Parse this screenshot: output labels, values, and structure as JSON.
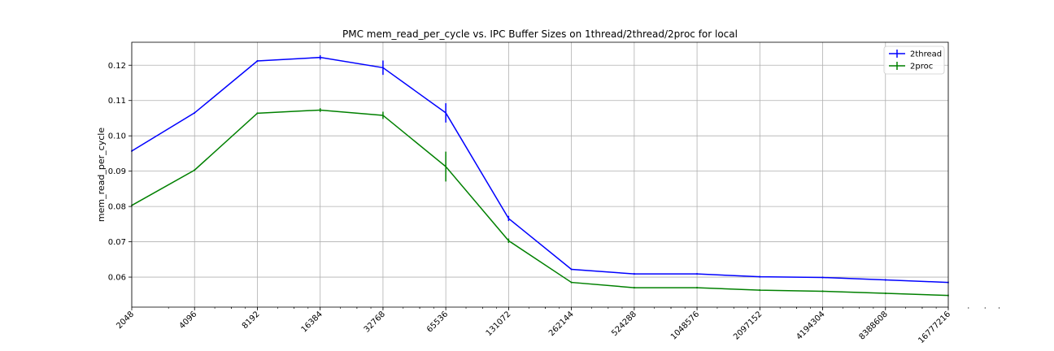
{
  "chart_data": {
    "type": "line",
    "title": "PMC mem_read_per_cycle vs. IPC Buffer Sizes on 1thread/2thread/2proc for local",
    "xlabel": "",
    "ylabel": "mem_read_per_cycle",
    "xscale": "log2",
    "grid": true,
    "legend_position": "top-right",
    "categories": [
      "2048",
      "4096",
      "8192",
      "16384",
      "32768",
      "65536",
      "131072",
      "262144",
      "524288",
      "1048576",
      "2097152",
      "4194304",
      "8388608",
      "16777216"
    ],
    "x": [
      2048,
      4096,
      8192,
      16384,
      32768,
      65536,
      131072,
      262144,
      524288,
      1048576,
      2097152,
      4194304,
      8388608,
      16777216
    ],
    "ylim": [
      0.0515,
      0.1265
    ],
    "yticks": [
      "0.06",
      "0.07",
      "0.08",
      "0.09",
      "0.10",
      "0.11",
      "0.12"
    ],
    "series": [
      {
        "name": "2thread",
        "color": "#0000ff",
        "values": [
          0.0957,
          0.1065,
          0.1212,
          0.1222,
          0.1193,
          0.1065,
          0.0766,
          0.0622,
          0.0609,
          0.0609,
          0.0601,
          0.0599,
          0.0592,
          0.0585
        ],
        "errors": [
          0,
          0,
          0,
          0.0004,
          0.0018,
          0.0025,
          0.0005,
          0,
          0,
          0,
          0,
          0,
          0,
          0
        ]
      },
      {
        "name": "2proc",
        "color": "#008000",
        "values": [
          0.0803,
          0.0903,
          0.1064,
          0.1073,
          0.1058,
          0.0913,
          0.0703,
          0.0585,
          0.057,
          0.057,
          0.0563,
          0.056,
          0.0554,
          0.0548
        ],
        "errors": [
          0,
          0,
          0,
          0.0003,
          0.0008,
          0.004,
          0.0004,
          0,
          0,
          0,
          0,
          0,
          0,
          0
        ]
      }
    ]
  }
}
